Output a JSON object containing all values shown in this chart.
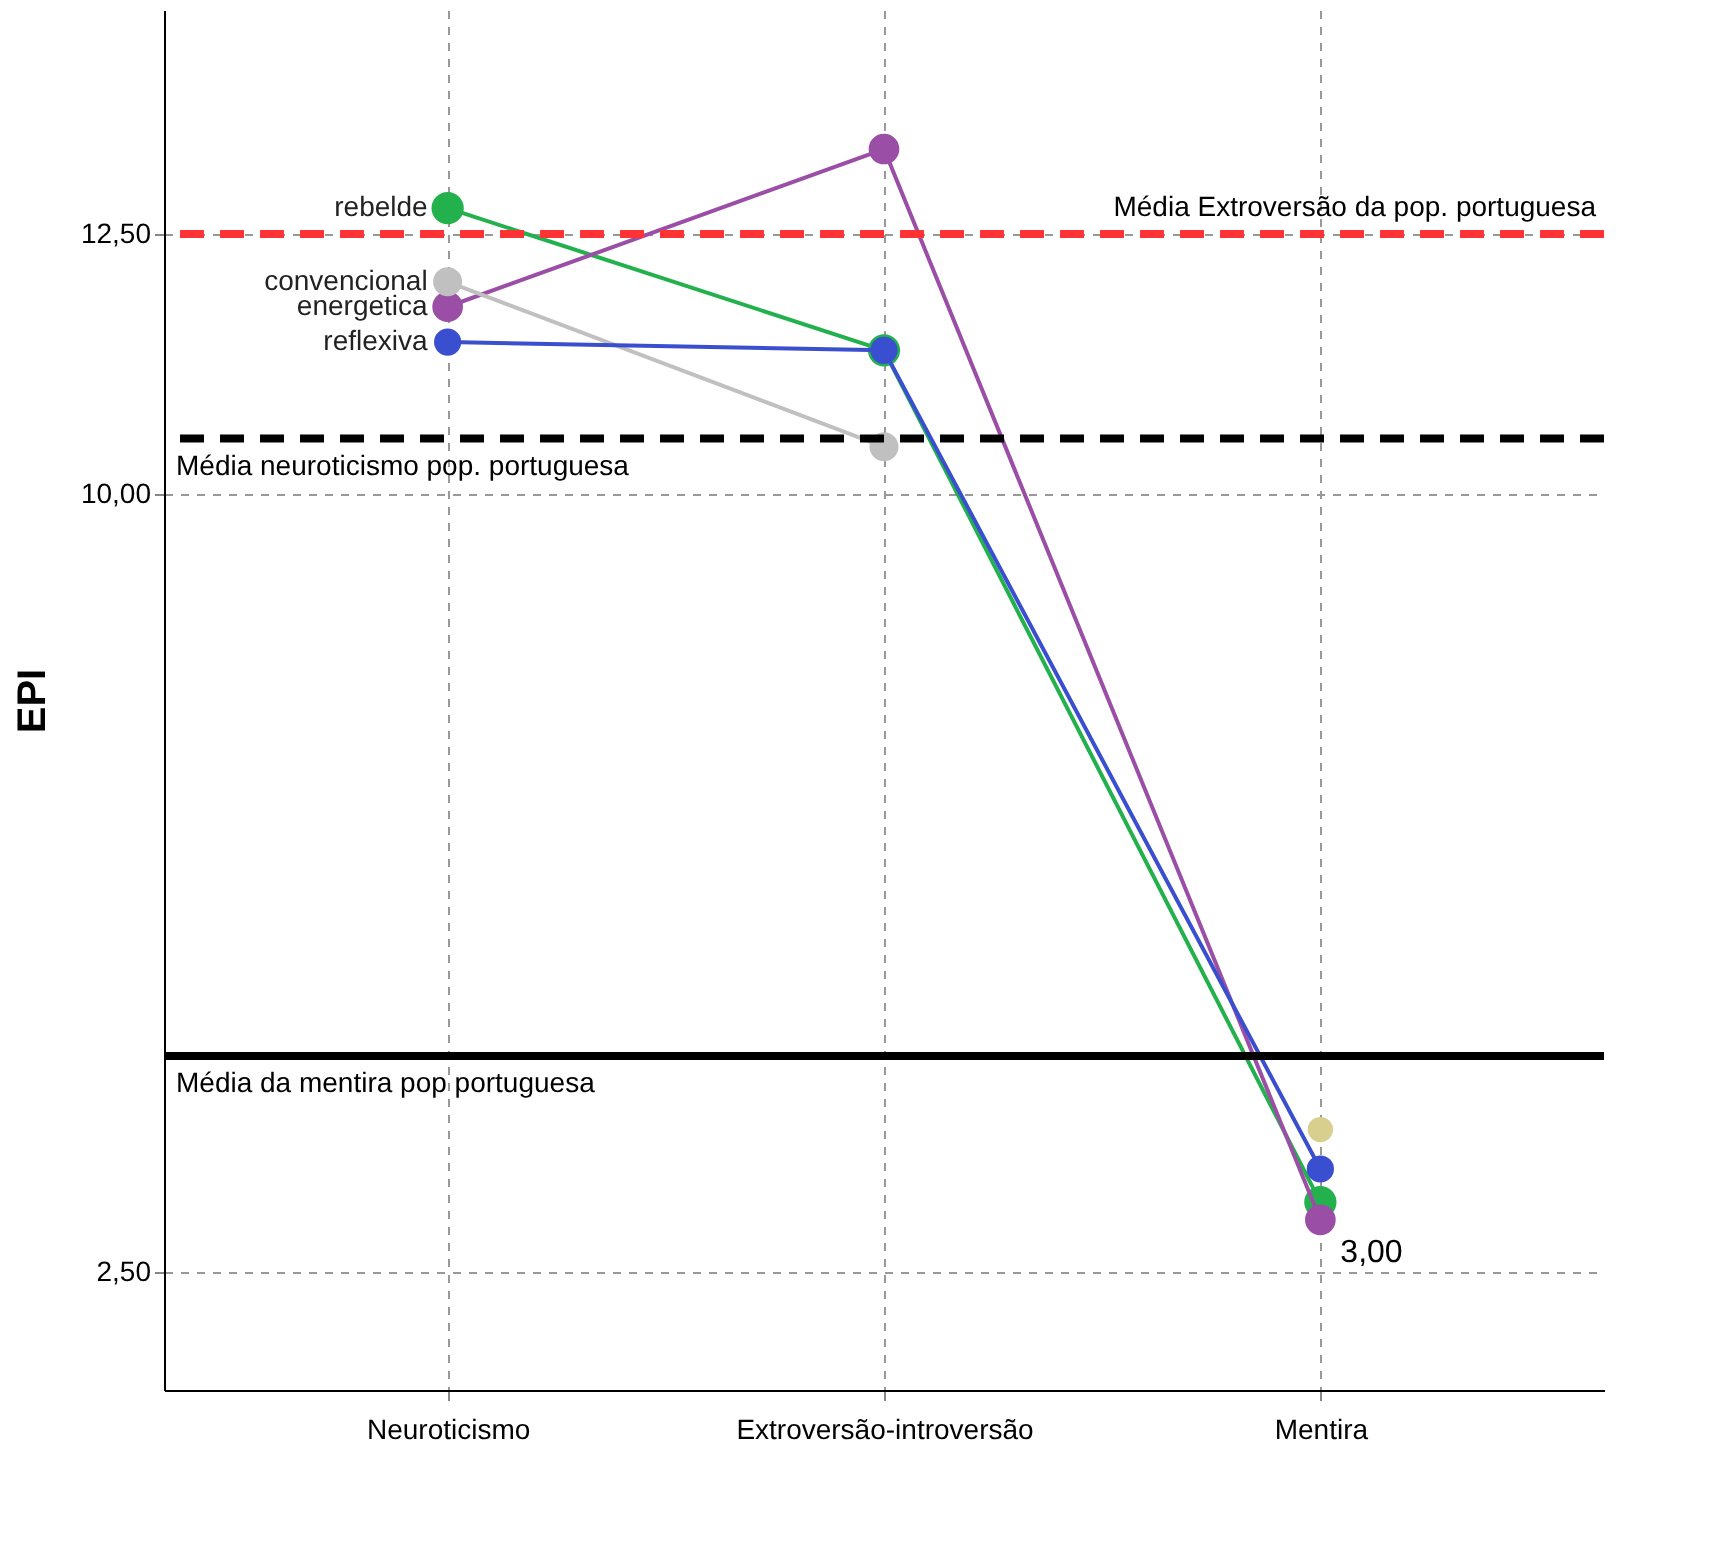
{
  "chart_data": {
    "type": "line",
    "categories": [
      "Neuroticismo",
      "Extroversão-introversão",
      "Mentira"
    ],
    "ylabel": "EPI",
    "ylim": [
      1.36,
      14.66
    ],
    "yticks": [
      {
        "value": 2.5,
        "label": "2,50"
      },
      {
        "value": 10,
        "label": "10,00"
      },
      {
        "value": 12.5,
        "label": "12,50"
      }
    ],
    "grid": true,
    "marker": "circle",
    "line_style": "solid",
    "series": [
      {
        "name": "rebelde",
        "color": "#22b14c",
        "values": [
          12.75,
          11.38,
          3.17
        ]
      },
      {
        "name": "energetica",
        "color": "#9b4ea6",
        "values": [
          11.8,
          13.32,
          3.0
        ]
      },
      {
        "name": "convencional",
        "color": "#c0c0c0",
        "values": [
          12.04,
          10.45,
          null
        ]
      },
      {
        "name": "reflexiva",
        "color": "#3a4fd0",
        "values": [
          11.46,
          11.38,
          3.49
        ]
      },
      {
        "color": "#d8cf8f",
        "values": [
          null,
          null,
          3.87
        ]
      }
    ],
    "ref_lines": [
      {
        "axis": "y",
        "value": 12.5,
        "label": "Média Extroversão da pop. portuguesa",
        "color": "#ff3333",
        "line_style": "dashed"
      },
      {
        "axis": "y",
        "value": 10.53,
        "label": "Média neuroticismo pop. portuguesa",
        "color": "#000000",
        "line_style": "dashed"
      },
      {
        "axis": "y",
        "value": 4.58,
        "label": "Média da mentira pop portuguesa",
        "color": "#000000",
        "line_style": "solid"
      }
    ],
    "annotations": [
      {
        "text": "3,00",
        "x": "Mentira",
        "y": 3.0
      }
    ]
  }
}
